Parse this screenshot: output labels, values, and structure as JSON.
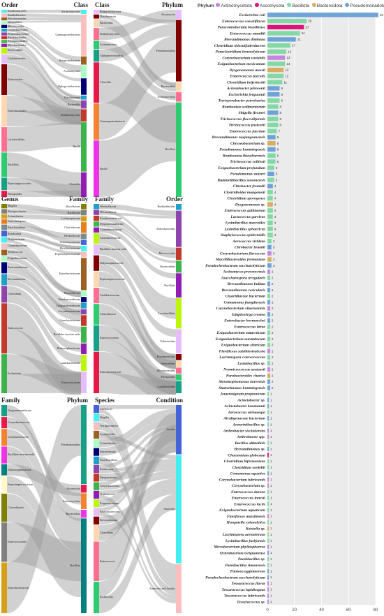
{
  "legend": {
    "title": "Phylum",
    "items": [
      {
        "name": "Actinomycetota",
        "color": "#c586e0"
      },
      {
        "name": "Ascomycota",
        "color": "#d9157d"
      },
      {
        "name": "Bacillota",
        "color": "#82d9a4"
      },
      {
        "name": "Bacteroidota",
        "color": "#d6ad63"
      },
      {
        "name": "Pseudomonadota",
        "color": "#6ea3d8"
      }
    ]
  },
  "chart_data": [
    {
      "type": "bar",
      "orientation": "horizontal",
      "xlim": [
        0,
        80
      ],
      "xticks": [
        0,
        20,
        40,
        60,
        80
      ],
      "grid": true,
      "legend_position": "top",
      "bars": [
        {
          "label": "Escherichia coli",
          "value": 82,
          "phylum": "Pseudomonadota"
        },
        {
          "label": "Enterococcus casseliflavus",
          "value": 29,
          "phylum": "Bacillota"
        },
        {
          "label": "Paraconiothyrium brasiliense",
          "value": 27,
          "phylum": "Ascomycota"
        },
        {
          "label": "Enterococcus mundtii",
          "value": 24,
          "phylum": "Bacillota"
        },
        {
          "label": "Brevundimonas diminuta",
          "value": 21,
          "phylum": "Pseudomonadota"
        },
        {
          "label": "Clostridium thiosulfatireducens",
          "value": 17,
          "phylum": "Bacillota"
        },
        {
          "label": "Paraclostridium benzoelyticum",
          "value": 14,
          "phylum": "Bacillota"
        },
        {
          "label": "Corynebacterium variabile",
          "value": 13,
          "phylum": "Actinomycetota"
        },
        {
          "label": "Exiguobacterium mexicanum",
          "value": 13,
          "phylum": "Bacillota"
        },
        {
          "label": "Dysgonomonas mossii",
          "value": 12,
          "phylum": "Bacteroidota"
        },
        {
          "label": "Enterococcus faecalis",
          "value": 12,
          "phylum": "Bacillota"
        },
        {
          "label": "Clostridium beijerinckii",
          "value": 11,
          "phylum": "Bacillota"
        },
        {
          "label": "Acinetobacter johnsonii",
          "value": 9,
          "phylum": "Pseudomonadota"
        },
        {
          "label": "Escherichia fergusonii",
          "value": 9,
          "phylum": "Pseudomonadota"
        },
        {
          "label": "Terrisporobacter petrolearius",
          "value": 9,
          "phylum": "Bacillota"
        },
        {
          "label": "Romboutsia sedimentorum",
          "value": 8,
          "phylum": "Bacillota"
        },
        {
          "label": "Shigella flexneri",
          "value": 8,
          "phylum": "Pseudomonadota"
        },
        {
          "label": "Trichococcus flocculiformis",
          "value": 8,
          "phylum": "Bacillota"
        },
        {
          "label": "Trichococcus pasteurii",
          "value": 8,
          "phylum": "Bacillota"
        },
        {
          "label": "Enterococcus faecium",
          "value": 7,
          "phylum": "Bacillota"
        },
        {
          "label": "Brevundimonas naejangsanensis",
          "value": 6,
          "phylum": "Pseudomonadota"
        },
        {
          "label": "Chryseobacterium sp.",
          "value": 6,
          "phylum": "Bacteroidota"
        },
        {
          "label": "Pseudomonas kunmingensis",
          "value": 6,
          "phylum": "Pseudomonadota"
        },
        {
          "label": "Romboutsia lituseburensis",
          "value": 6,
          "phylum": "Bacillota"
        },
        {
          "label": "Trichococcus collinsii",
          "value": 6,
          "phylum": "Bacillota"
        },
        {
          "label": "Exiguobacterium profundum",
          "value": 5,
          "phylum": "Bacillota"
        },
        {
          "label": "Pseudomonas stutzeri",
          "value": 5,
          "phylum": "Pseudomonadota"
        },
        {
          "label": "Rummeliibacillus suwonensis",
          "value": 5,
          "phylum": "Bacillota"
        },
        {
          "label": "Citrobacter freundii",
          "value": 4,
          "phylum": "Pseudomonadota"
        },
        {
          "label": "Clostridioides mangenotii",
          "value": 4,
          "phylum": "Bacillota"
        },
        {
          "label": "Clostridium sporogenes",
          "value": 4,
          "phylum": "Bacillota"
        },
        {
          "label": "Dysgonomonas sp.",
          "value": 4,
          "phylum": "Bacteroidota"
        },
        {
          "label": "Enterococcus gallinarum",
          "value": 4,
          "phylum": "Bacillota"
        },
        {
          "label": "Lactococcus garvieae",
          "value": 4,
          "phylum": "Bacillota"
        },
        {
          "label": "Lysinibacillus macroides",
          "value": 4,
          "phylum": "Bacillota"
        },
        {
          "label": "Lysinibacillus sphaericus",
          "value": 4,
          "phylum": "Bacillota"
        },
        {
          "label": "Staphylococcus epidermidis",
          "value": 4,
          "phylum": "Bacillota"
        },
        {
          "label": "Aerococcus viridans",
          "value": 3,
          "phylum": "Bacillota"
        },
        {
          "label": "Citrobacter braakii",
          "value": 3,
          "phylum": "Pseudomonadota"
        },
        {
          "label": "Corynebacterium flavescens",
          "value": 3,
          "phylum": "Actinomycetota"
        },
        {
          "label": "Macellibacteroides fermentans",
          "value": 3,
          "phylum": "Bacteroidota"
        },
        {
          "label": "Pseudochrobactrum saccharolyticum",
          "value": 3,
          "phylum": "Pseudomonadota"
        },
        {
          "label": "Actinomyces provencensis",
          "value": 2,
          "phylum": "Actinomycetota"
        },
        {
          "label": "Asaccharospora irregularis",
          "value": 2,
          "phylum": "Bacillota"
        },
        {
          "label": "Brevundimonas bullata",
          "value": 2,
          "phylum": "Pseudomonadota"
        },
        {
          "label": "Brevundimonas vesicularis",
          "value": 2,
          "phylum": "Pseudomonadota"
        },
        {
          "label": "Clostridiaceae bacterium",
          "value": 2,
          "phylum": "Bacillota"
        },
        {
          "label": "Comamonas jiangduensis",
          "value": 2,
          "phylum": "Pseudomonadota"
        },
        {
          "label": "Corynebacterium vitaeruminis",
          "value": 2,
          "phylum": "Actinomycetota"
        },
        {
          "label": "Edaphovirga cremea",
          "value": 2,
          "phylum": "Pseudomonadota"
        },
        {
          "label": "Enterobacter hormaechei",
          "value": 2,
          "phylum": "Pseudomonadota"
        },
        {
          "label": "Enterococcus hirae",
          "value": 2,
          "phylum": "Bacillota"
        },
        {
          "label": "Exiguobacterium antarcticum",
          "value": 2,
          "phylum": "Bacillota"
        },
        {
          "label": "Exiguobacterium aurantiacum",
          "value": 2,
          "phylum": "Bacillota"
        },
        {
          "label": "Exiguobacterium sibiricum",
          "value": 2,
          "phylum": "Bacillota"
        },
        {
          "label": "Flaviflexus salsibiostraticola",
          "value": 2,
          "phylum": "Actinomycetota"
        },
        {
          "label": "Lacrimispora celerecrescens",
          "value": 2,
          "phylum": "Bacillota"
        },
        {
          "label": "Lysinibacillus sp.",
          "value": 2,
          "phylum": "Bacillota"
        },
        {
          "label": "Neomicrococcus aestuarii",
          "value": 2,
          "phylum": "Actinomycetota"
        },
        {
          "label": "Parabacteroides chartae",
          "value": 2,
          "phylum": "Bacteroidota"
        },
        {
          "label": "Stenotrophomonas koreensis",
          "value": 2,
          "phylum": "Pseudomonadota"
        },
        {
          "label": "Stutzerimonas kunmingensis",
          "value": 2,
          "phylum": "Pseudomonadota"
        },
        {
          "label": "Anaerotignum propionicum",
          "value": 1,
          "phylum": "Bacillota"
        },
        {
          "label": "Acinetobacter sp.",
          "value": 1,
          "phylum": "Pseudomonadota"
        },
        {
          "label": "Acinetobacter baumannii",
          "value": 1,
          "phylum": "Pseudomonadota"
        },
        {
          "label": "Aerococcus urinaeequi",
          "value": 1,
          "phylum": "Bacillota"
        },
        {
          "label": "Alcaligenaceae bacterium",
          "value": 1,
          "phylum": "Pseudomonadota"
        },
        {
          "label": "Aneurinibacillus sp.",
          "value": 1,
          "phylum": "Bacillota"
        },
        {
          "label": "Arthrobacter siccitolerans",
          "value": 1,
          "phylum": "Actinomycetota"
        },
        {
          "label": "Arthrobacter spp.",
          "value": 1,
          "phylum": "Actinomycetota"
        },
        {
          "label": "Bacillus altitudinis",
          "value": 1,
          "phylum": "Bacillota"
        },
        {
          "label": "Brevundimonas sp.",
          "value": 1,
          "phylum": "Pseudomonadota"
        },
        {
          "label": "Chaetomium globosum",
          "value": 1,
          "phylum": "Ascomycota"
        },
        {
          "label": "Clostridium bifermentans",
          "value": 1,
          "phylum": "Bacillota"
        },
        {
          "label": "Clostridium sordellii",
          "value": 1,
          "phylum": "Bacillota"
        },
        {
          "label": "Comamonas aquatica",
          "value": 1,
          "phylum": "Pseudomonadota"
        },
        {
          "label": "Corynebacterium lubricantis",
          "value": 1,
          "phylum": "Actinomycetota"
        },
        {
          "label": "Corynebacterium sp.",
          "value": 1,
          "phylum": "Actinomycetota"
        },
        {
          "label": "Enterococcus durans",
          "value": 1,
          "phylum": "Bacillota"
        },
        {
          "label": "Enterococcus innesii",
          "value": 1,
          "phylum": "Bacillota"
        },
        {
          "label": "Enterococcus lactis",
          "value": 1,
          "phylum": "Bacillota"
        },
        {
          "label": "Exiguobacterium aquaticum",
          "value": 1,
          "phylum": "Bacillota"
        },
        {
          "label": "Flaviflexus massiliensis",
          "value": 1,
          "phylum": "Actinomycetota"
        },
        {
          "label": "Hungatella xylanolytica",
          "value": 1,
          "phylum": "Bacillota"
        },
        {
          "label": "Kaistella sp.",
          "value": 1,
          "phylum": "Bacteroidota"
        },
        {
          "label": "Lacrimispora aerotolerans",
          "value": 1,
          "phylum": "Bacillota"
        },
        {
          "label": "Lysinibacillus fusiformis",
          "value": 1,
          "phylum": "Bacillota"
        },
        {
          "label": "Microbacterium phyllosphaerae",
          "value": 1,
          "phylum": "Actinomycetota"
        },
        {
          "label": "Ochrobactrum Grignonense",
          "value": 1,
          "phylum": "Pseudomonadota"
        },
        {
          "label": "Paenibacillus sp.",
          "value": 1,
          "phylum": "Bacillota"
        },
        {
          "label": "Paenibacillus timonensis",
          "value": 1,
          "phylum": "Bacillota"
        },
        {
          "label": "Pantoea agglomerans",
          "value": 1,
          "phylum": "Pseudomonadota"
        },
        {
          "label": "Pseudochrobactrum saccharolyticum",
          "value": 1,
          "phylum": "Pseudomonadota"
        },
        {
          "label": "Tessaracoccus flavus",
          "value": 1,
          "phylum": "Actinomycetota"
        },
        {
          "label": "Tessaracoccus lapidicaptus",
          "value": 1,
          "phylum": "Actinomycetota"
        },
        {
          "label": "Tessaracoccus lubricantis",
          "value": 1,
          "phylum": "Actinomycetota"
        },
        {
          "label": "Tessaracoccus sp.",
          "value": 1,
          "phylum": "Actinomycetota"
        }
      ]
    },
    {
      "type": "sankey",
      "left_title": "Order",
      "right_title": "Class",
      "left": [
        "Sordariomycetes",
        "Burkholderiales",
        "Flavobacteriales",
        "Weeksellales",
        "Micrococcales",
        "Corynebacteriales",
        "Propionibacteriales",
        "Rhodobacterales",
        "Pseudomonadales",
        "Mycobacteriales",
        "Bacteroidales",
        "Caulobacterales",
        "Eubacteriales",
        "Enterobacterales",
        "Lactobacillales",
        "Bacillales",
        "Peptostreptococcales",
        "Pleosporales"
      ],
      "right": [
        "Sordariomycetes",
        "Gammaproteobacteria",
        "Betaproteobacteria",
        "Actinomycetes",
        "Alphaproteobacteria",
        "Flavobacteriia",
        "Bacteroidia",
        "Dothideomycetes",
        "Bacilli",
        "Clostridia"
      ]
    },
    {
      "type": "sankey",
      "left_title": "Class",
      "right_title": "Phylum",
      "left": [
        "Betaproteobacteria",
        "Flavobacteriia",
        "Bacteroidia",
        "Dothideomycetes",
        "Actinomycetes",
        "Alphaproteobacteria",
        "Clostridia",
        "Gammaproteobacteria",
        "Bacilli"
      ],
      "right": [
        "Ascomycota",
        "Pseudomonadota",
        "Bacteroidota",
        "Actinomycetota",
        "Bacillota"
      ]
    },
    {
      "type": "sankey",
      "left_title": "Genus",
      "right_title": "Family",
      "left": [
        "Shigella",
        "Terrisporobacter",
        "Acinetobacter",
        "Asaccharospora",
        "Paraclostridium",
        "Romboutsia",
        "Dysgonomonas",
        "Corynebacterium",
        "Trichococcus",
        "Exiguobacterium",
        "Paraconiothyrium",
        "Brevundimonas",
        "Clostridium",
        "Enterococcus",
        "Escherichia"
      ],
      "right": [
        "Brucellaceae",
        "Bacillaceae",
        "Lachnospiraceae",
        "Clostridiaceae",
        "Weeksellaceae",
        "Actinomycetaceae",
        "Microbacteriaceae",
        "Peptostreptococcaceae",
        "Enterobacteriaceae",
        "Moraxellaceae",
        "Pseudomonadaceae",
        "Dysgonomonadaceae",
        "Corynebacteriaceae",
        "Carnobacteriaceae",
        "Bacillales incertae sedis",
        "Didymosphaeriaceae",
        "Caulobacteraceae",
        "Enterococcaceae"
      ]
    },
    {
      "type": "sankey",
      "left_title": "Family",
      "right_title": "Order",
      "left": [
        "Weeksellaceae",
        "Moraxellaceae",
        "Pseudomonadaceae",
        "Dysgonomonadaceae",
        "Corynebacteriaceae",
        "Carnobacteriaceae",
        "Bacillales incertae sedis",
        "Didymosphaeriaceae",
        "Peptostreptococcaceae",
        "Caulobacteraceae",
        "Clostridiaceae",
        "Enterococcaceae",
        "Enterobacteriaceae"
      ],
      "right": [
        "Burkholderiales",
        "Enterobacterales",
        "Micrococcales",
        "Bacteroidales",
        "Bacillales",
        "Lactobacillales",
        "Eubacteriales",
        "Flavobacteriales",
        "Weeksellales",
        "Mycobacteriales",
        "Pleosporales",
        "Caulobacterales"
      ]
    },
    {
      "type": "sankey",
      "left_title": "Family",
      "right_title": "Phylum",
      "left": [
        "Dysgonomonadaceae",
        "Corynebacteriaceae",
        "Carnobacteriaceae",
        "Bacillales incertae sedis",
        "Didymosphaeriaceae",
        "Peptostreptococcaceae",
        "Clostridiaceae",
        "Enterococcaceae",
        "Enterobacteriaceae"
      ],
      "right": [
        "Pseudomonadota",
        "Ascomycota",
        "Actinomycetota",
        "Bacteroidota",
        "Bacillota"
      ]
    },
    {
      "type": "sankey",
      "left_title": "Species",
      "right_title": "Condition",
      "left": [
        "Citrobacter",
        "Shigella",
        "Terrisporobacter",
        "Lysinibacillus",
        "Acinetobacter",
        "Stutzerimonas",
        "Paraclostridium",
        "Romboutsia",
        "Dysgonomonas",
        "Corynebacterium",
        "Trichococcus",
        "Exiguobacterium",
        "Paraconiothyrium",
        "Brevundimonas",
        "Clostridium",
        "Enterococcus",
        "Escherichia"
      ],
      "right": [
        "Aerobic",
        "Anaerobic",
        "Anaerobic and Aerobic"
      ]
    }
  ]
}
